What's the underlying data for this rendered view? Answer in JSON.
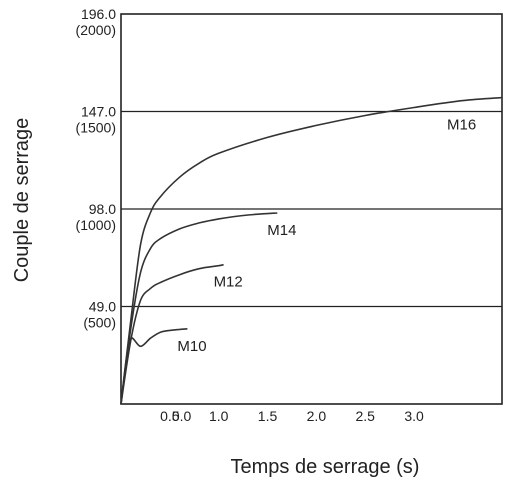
{
  "chart_data": {
    "type": "line",
    "title": "",
    "xlabel": "Temps de serrage (s)",
    "ylabel": "Couple de serrage",
    "xlim": [
      0,
      3.9
    ],
    "ylim": [
      0,
      196.0
    ],
    "grid": "horizontal lines at y tick values",
    "legend": "none (series labelled directly on curves)",
    "x_ticks": [
      {
        "x": 0.5,
        "label": "0.5"
      },
      {
        "x": 1.0,
        "label": "1.0"
      },
      {
        "x": 1.5,
        "label": "1.5"
      },
      {
        "x": 2.0,
        "label": "2.0"
      },
      {
        "x": 2.5,
        "label": "2.5"
      },
      {
        "x": 3.0,
        "label": "3.0"
      }
    ],
    "x_tick_extra": {
      "x": 0.6,
      "label": "0.0"
    },
    "y_ticks": [
      {
        "y": 49.0,
        "label": "49.0",
        "sublabel": "(500)"
      },
      {
        "y": 98.0,
        "label": "98.0",
        "sublabel": "(1000)"
      },
      {
        "y": 147.0,
        "label": "147.0",
        "sublabel": "(1500)"
      },
      {
        "y": 196.0,
        "label": "196.0",
        "sublabel": "(2000)"
      }
    ],
    "series": [
      {
        "name": "M10",
        "color": "#333333",
        "points": [
          [
            0,
            0
          ],
          [
            0.05,
            21
          ],
          [
            0.1,
            33
          ],
          [
            0.2,
            29
          ],
          [
            0.3,
            33
          ],
          [
            0.4,
            36
          ],
          [
            0.5,
            37
          ],
          [
            0.6,
            37.5
          ],
          [
            0.68,
            37.8
          ]
        ]
      },
      {
        "name": "M12",
        "color": "#333333",
        "points": [
          [
            0,
            0
          ],
          [
            0.1,
            32
          ],
          [
            0.2,
            52
          ],
          [
            0.3,
            58
          ],
          [
            0.4,
            61
          ],
          [
            0.6,
            65
          ],
          [
            0.8,
            68
          ],
          [
            1.0,
            69.5
          ],
          [
            1.05,
            70
          ]
        ]
      },
      {
        "name": "M14",
        "color": "#333333",
        "points": [
          [
            0,
            0
          ],
          [
            0.1,
            38
          ],
          [
            0.2,
            66
          ],
          [
            0.3,
            78
          ],
          [
            0.4,
            83
          ],
          [
            0.6,
            88
          ],
          [
            0.8,
            91
          ],
          [
            1.0,
            93
          ],
          [
            1.3,
            95
          ],
          [
            1.6,
            96
          ]
        ]
      },
      {
        "name": "M16",
        "color": "#333333",
        "points": [
          [
            0,
            0
          ],
          [
            0.1,
            42
          ],
          [
            0.2,
            80
          ],
          [
            0.3,
            96
          ],
          [
            0.4,
            104
          ],
          [
            0.6,
            114
          ],
          [
            0.8,
            121
          ],
          [
            1.0,
            126
          ],
          [
            1.5,
            134
          ],
          [
            2.0,
            140
          ],
          [
            2.5,
            145
          ],
          [
            3.0,
            149
          ],
          [
            3.5,
            152.5
          ],
          [
            3.9,
            154
          ]
        ]
      }
    ]
  }
}
